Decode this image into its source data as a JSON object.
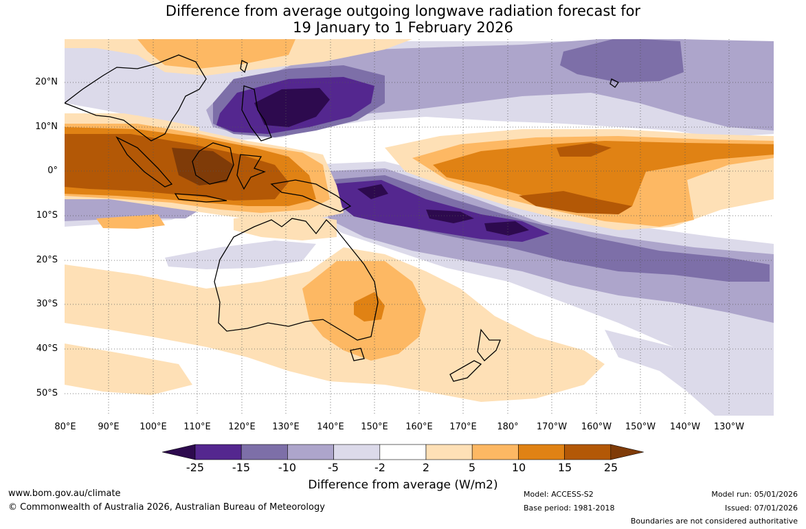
{
  "title": {
    "line1": "Difference from average outgoing longwave radiation forecast for",
    "line2": "19 January to 1 February 2026"
  },
  "map": {
    "lat_labels": [
      "20°N",
      "10°N",
      "0°",
      "10°S",
      "20°S",
      "30°S",
      "40°S",
      "50°S"
    ],
    "lon_labels": [
      "80°E",
      "90°E",
      "100°E",
      "110°E",
      "120°E",
      "130°E",
      "140°E",
      "150°E",
      "160°E",
      "170°E",
      "180°",
      "170°W",
      "160°W",
      "150°W",
      "140°W",
      "130°W"
    ]
  },
  "colorbar": {
    "title": "Difference from average (W/m2)",
    "tick_labels": [
      "-25",
      "-15",
      "-10",
      "-5",
      "-2",
      "2",
      "5",
      "10",
      "15",
      "25"
    ],
    "colors": [
      "#2d0a4e",
      "#54278f",
      "#7d6fa8",
      "#ada5cb",
      "#dcdaea",
      "#ffffff",
      "#fee0b6",
      "#fdb863",
      "#e08214",
      "#b35806",
      "#7f3b08"
    ]
  },
  "footer": {
    "website": "www.bom.gov.au/climate",
    "copyright": "© Commonwealth of Australia 2026, Australian Bureau of Meteorology",
    "model": "Model: ACCESS-S2",
    "base_period": "Base period: 1981-2018",
    "model_run": "Model run: 05/01/2026",
    "issued": "Issued: 07/01/2026",
    "disclaimer": "Boundaries are not considered authoritative"
  }
}
